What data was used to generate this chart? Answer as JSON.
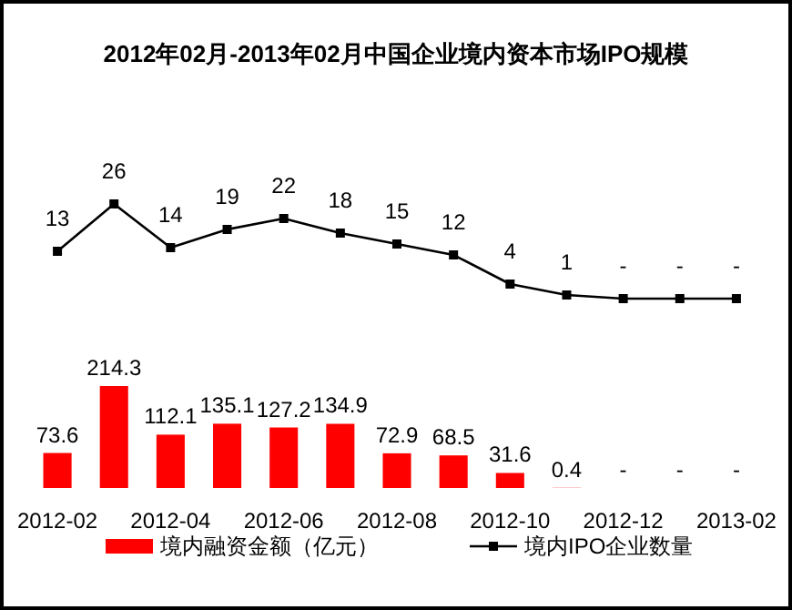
{
  "chart_data": [
    {
      "type": "line",
      "title": "2012年02月-2013年02月中国企业境内资本市场IPO规模",
      "categories": [
        null,
        null,
        null,
        null,
        null,
        null,
        null,
        null,
        null,
        null,
        null,
        null,
        null
      ],
      "marker": "square",
      "legend": "bottom",
      "series": [
        {
          "name": "境内IPO企业数量",
          "color": "#000000",
          "values": [
            13,
            26,
            14,
            19,
            22,
            18,
            15,
            12,
            4,
            1,
            0,
            0,
            0
          ],
          "value_labels": [
            "13",
            "26",
            "14",
            "19",
            "22",
            "18",
            "15",
            "12",
            "4",
            "1",
            "-",
            "-",
            "-"
          ]
        }
      ]
    },
    {
      "type": "bar",
      "categories": [
        "2012-02",
        null,
        "2012-04",
        null,
        "2012-06",
        null,
        "2012-08",
        null,
        "2012-10",
        null,
        "2012-12",
        null,
        "2013-02"
      ],
      "legend": "bottom",
      "series": [
        {
          "name": "境内融资金额（亿元）",
          "color": "#ff0000",
          "values": [
            73.6,
            214.3,
            112.1,
            135.1,
            127.2,
            134.9,
            72.9,
            68.5,
            31.6,
            0.4,
            0,
            0,
            0
          ],
          "value_labels": [
            "73.6",
            "214.3",
            "112.1",
            "135.1",
            "127.2",
            "134.9",
            "72.9",
            "68.5",
            "31.6",
            "0.4",
            "-",
            "-",
            "-"
          ]
        }
      ]
    }
  ]
}
